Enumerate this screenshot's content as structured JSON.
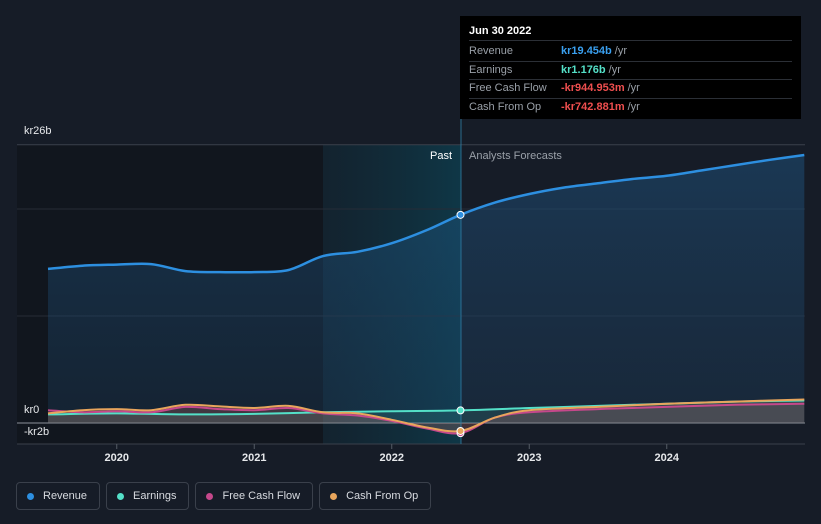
{
  "chart_data": {
    "type": "line",
    "x_axis": {
      "ticks": [
        "2020",
        "2021",
        "2022",
        "2023",
        "2024"
      ]
    },
    "y_axis": {
      "unit": "SEK billions",
      "top_label": "kr26b",
      "zero_label": "kr0",
      "bottom_label": "-kr2b",
      "ylim": [
        -2,
        26
      ]
    },
    "divider_date": "2022-06-30",
    "region_labels": {
      "past": "Past",
      "forecast": "Analysts Forecasts"
    },
    "series": [
      {
        "name": "Revenue",
        "color": "#2d8fe0",
        "points": [
          [
            2019.5,
            14.4
          ],
          [
            2019.75,
            14.7
          ],
          [
            2020.0,
            14.8
          ],
          [
            2020.25,
            14.85
          ],
          [
            2020.5,
            14.2
          ],
          [
            2020.75,
            14.1
          ],
          [
            2021.0,
            14.1
          ],
          [
            2021.25,
            14.3
          ],
          [
            2021.5,
            15.6
          ],
          [
            2021.75,
            16.0
          ],
          [
            2022.0,
            16.8
          ],
          [
            2022.25,
            18.0
          ],
          [
            2022.5,
            19.454
          ],
          [
            2022.75,
            20.6
          ],
          [
            2023.0,
            21.4
          ],
          [
            2023.25,
            22.0
          ],
          [
            2023.5,
            22.4
          ],
          [
            2023.75,
            22.8
          ],
          [
            2024.0,
            23.1
          ],
          [
            2024.25,
            23.6
          ],
          [
            2024.5,
            24.1
          ],
          [
            2024.75,
            24.6
          ],
          [
            2025.0,
            25.05
          ]
        ]
      },
      {
        "name": "Earnings",
        "color": "#54e0c8",
        "points": [
          [
            2019.5,
            0.8
          ],
          [
            2020.0,
            0.9
          ],
          [
            2020.5,
            0.8
          ],
          [
            2021.0,
            0.85
          ],
          [
            2021.5,
            1.0
          ],
          [
            2022.0,
            1.1
          ],
          [
            2022.5,
            1.176
          ],
          [
            2023.0,
            1.4
          ],
          [
            2023.5,
            1.6
          ],
          [
            2024.0,
            1.8
          ],
          [
            2024.5,
            2.0
          ],
          [
            2025.0,
            2.1
          ]
        ]
      },
      {
        "name": "Free Cash Flow",
        "color": "#c5488b",
        "points": [
          [
            2019.5,
            1.2
          ],
          [
            2019.75,
            1.0
          ],
          [
            2020.0,
            1.1
          ],
          [
            2020.25,
            1.0
          ],
          [
            2020.5,
            1.5
          ],
          [
            2020.75,
            1.3
          ],
          [
            2021.0,
            1.2
          ],
          [
            2021.25,
            1.4
          ],
          [
            2021.5,
            0.9
          ],
          [
            2021.75,
            0.7
          ],
          [
            2022.0,
            0.2
          ],
          [
            2022.25,
            -0.5
          ],
          [
            2022.5,
            -0.945
          ],
          [
            2022.75,
            0.5
          ],
          [
            2023.0,
            1.0
          ],
          [
            2023.5,
            1.3
          ],
          [
            2024.0,
            1.5
          ],
          [
            2024.5,
            1.7
          ],
          [
            2025.0,
            1.8
          ]
        ]
      },
      {
        "name": "Cash From Op",
        "color": "#e8a55c",
        "points": [
          [
            2019.5,
            0.9
          ],
          [
            2019.75,
            1.2
          ],
          [
            2020.0,
            1.3
          ],
          [
            2020.25,
            1.2
          ],
          [
            2020.5,
            1.7
          ],
          [
            2020.75,
            1.55
          ],
          [
            2021.0,
            1.4
          ],
          [
            2021.25,
            1.6
          ],
          [
            2021.5,
            1.0
          ],
          [
            2021.75,
            0.9
          ],
          [
            2022.0,
            0.3
          ],
          [
            2022.25,
            -0.4
          ],
          [
            2022.5,
            -0.743
          ],
          [
            2022.75,
            0.5
          ],
          [
            2023.0,
            1.2
          ],
          [
            2023.5,
            1.5
          ],
          [
            2024.0,
            1.8
          ],
          [
            2024.5,
            2.0
          ],
          [
            2025.0,
            2.2
          ]
        ]
      }
    ]
  },
  "tooltip": {
    "date": "Jun 30 2022",
    "rows": [
      {
        "label": "Revenue",
        "value": "kr19.454b",
        "unit": "/yr",
        "color": "#3aa0f0"
      },
      {
        "label": "Earnings",
        "value": "kr1.176b",
        "unit": "/yr",
        "color": "#54e0c8"
      },
      {
        "label": "Free Cash Flow",
        "value": "-kr944.953m",
        "unit": "/yr",
        "color": "#ef4f4f"
      },
      {
        "label": "Cash From Op",
        "value": "-kr742.881m",
        "unit": "/yr",
        "color": "#ef4f4f"
      }
    ]
  },
  "legend": [
    {
      "label": "Revenue",
      "color": "#2d8fe0"
    },
    {
      "label": "Earnings",
      "color": "#54e0c8"
    },
    {
      "label": "Free Cash Flow",
      "color": "#c5488b"
    },
    {
      "label": "Cash From Op",
      "color": "#e8a55c"
    }
  ]
}
